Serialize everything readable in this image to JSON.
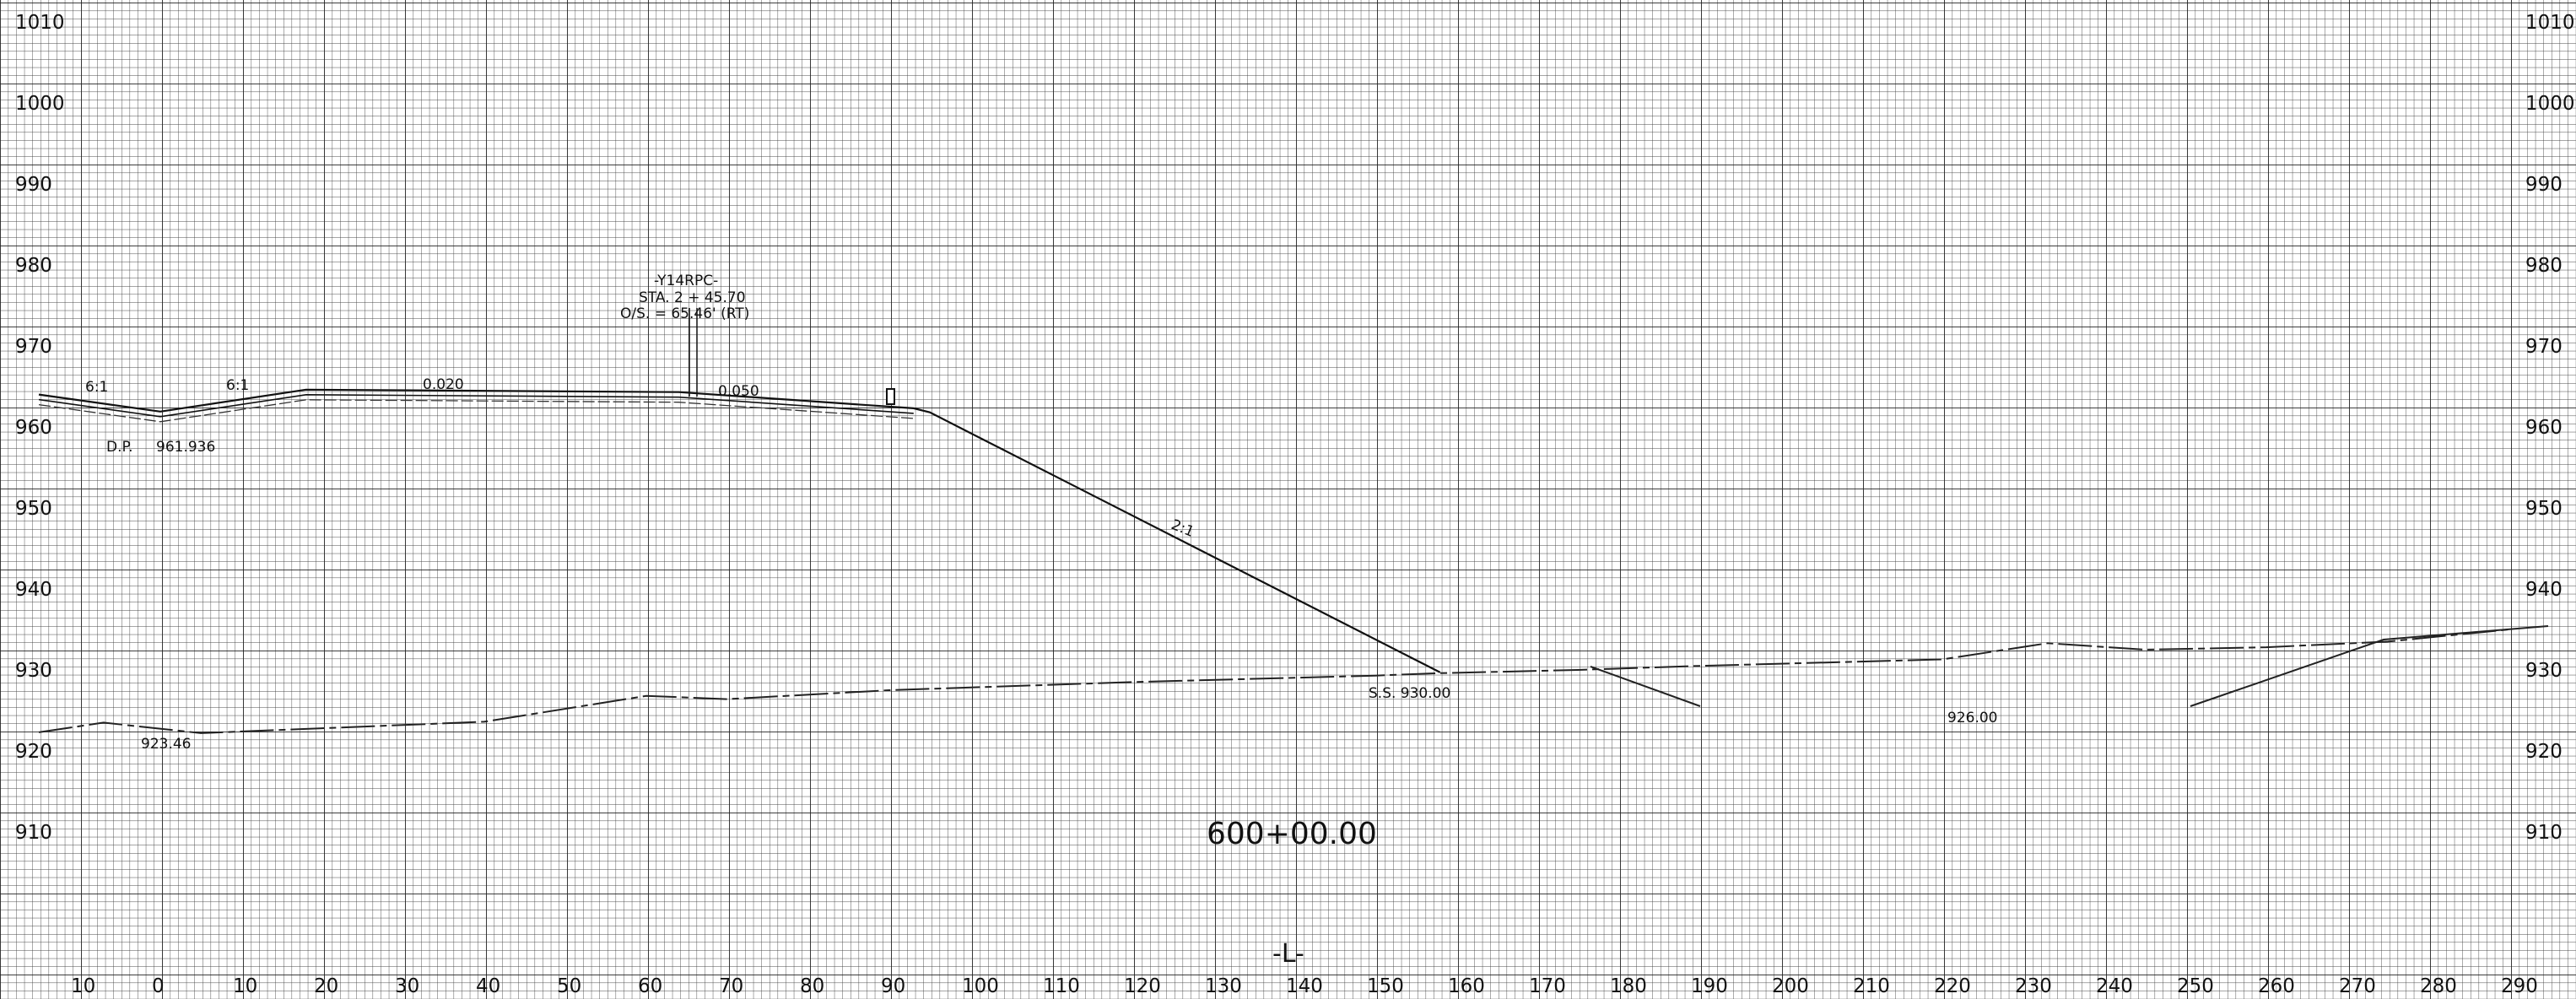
{
  "station_title": "600+00.00",
  "alignment": "-L-",
  "elevation_labels": [
    "1010",
    "1000",
    "990",
    "980",
    "970",
    "960",
    "950",
    "940",
    "930",
    "920",
    "910"
  ],
  "offset_labels": [
    "10",
    "0",
    "10",
    "20",
    "30",
    "40",
    "50",
    "60",
    "70",
    "80",
    "90",
    "100",
    "110",
    "120",
    "130",
    "140",
    "150",
    "160",
    "170",
    "180",
    "190",
    "200",
    "210",
    "220",
    "230",
    "240",
    "250",
    "260",
    "270",
    "280",
    "290"
  ],
  "notes": {
    "ditch_point": "D.P.",
    "ditch_point_elev": "961.936",
    "slope_left_1": "6:1",
    "slope_left_2": "6:1",
    "cross_slope_1": "0.020",
    "cross_slope_2": "0.050",
    "fill_slope": "2:1",
    "slope_stake": "S.S. 930.00",
    "ground_left": "923.46",
    "ground_right": "926.00",
    "ctrl_name": "-Y14RPC-",
    "ctrl_sta": "STA. 2 + 45.70",
    "ctrl_os": "O/S. =    65.46' (RT)"
  },
  "chart_data": {
    "type": "line",
    "title": "600+00.00",
    "xlabel": "",
    "ylabel": "",
    "xlim": [
      -10,
      290
    ],
    "ylim": [
      905,
      1010
    ],
    "grid": true,
    "series": [
      {
        "values_x": [
          -15,
          0,
          18,
          64,
          93,
          95,
          158
        ],
        "values_y": [
          964.0,
          961.9,
          964.6,
          964.3,
          962.3,
          961.8,
          929.7
        ]
      },
      {
        "values_x": [
          -15,
          -7,
          5,
          40,
          60,
          70,
          90,
          120,
          150,
          158,
          175,
          190,
          220,
          233,
          245,
          260,
          275,
          290
        ],
        "values_y": [
          922.3,
          923.5,
          922.2,
          923.6,
          926.8,
          926.4,
          927.5,
          928.5,
          929.3,
          929.6,
          930.0,
          930.5,
          931.3,
          933.3,
          932.5,
          932.8,
          933.5,
          935.0
        ]
      }
    ]
  }
}
